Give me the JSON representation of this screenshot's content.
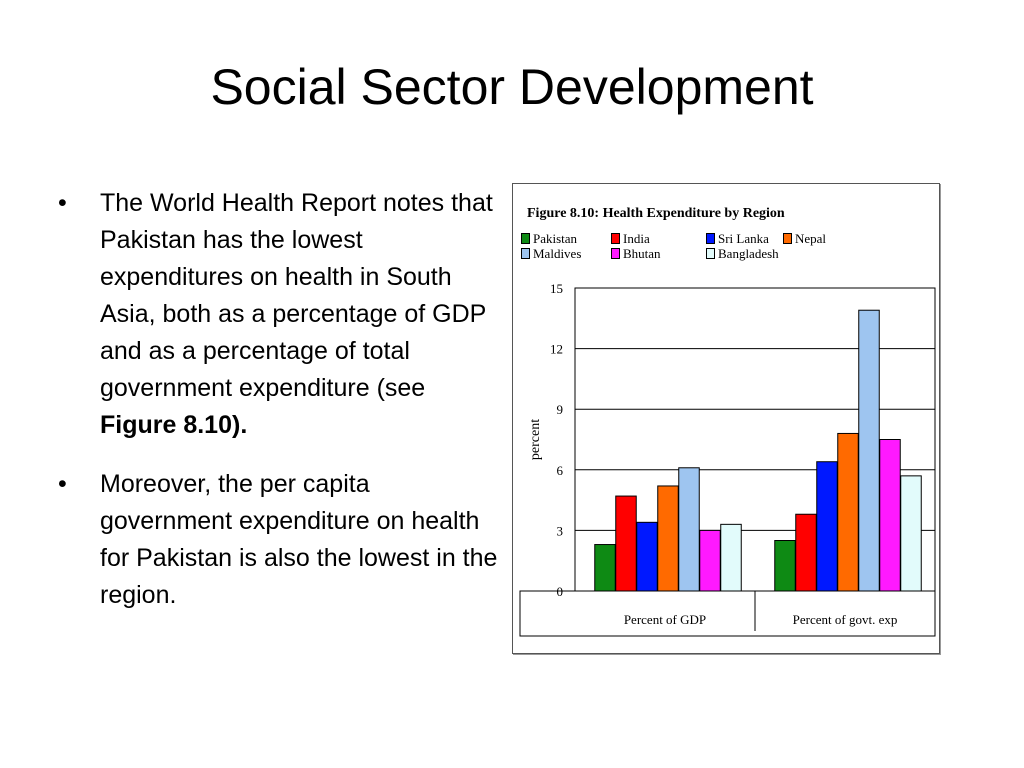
{
  "slide": {
    "title": "Social Sector Development",
    "bullets": [
      {
        "text": "The World Health Report notes that Pakistan has the lowest expenditures on health in South Asia, both as a percentage of GDP and as a percentage of total government expenditure (see ",
        "bold": "Figure 8.10)."
      },
      {
        "text": "Moreover, the per capita government expenditure on health for Pakistan is also the lowest in the region."
      }
    ]
  },
  "chart_data": {
    "type": "bar",
    "title": "Figure 8.10: Health Expenditure by Region",
    "ylabel": "percent",
    "xlabel": "",
    "ylim": [
      0,
      15
    ],
    "yticks": [
      0,
      3,
      6,
      9,
      12,
      15
    ],
    "grid": true,
    "legend_position": "top",
    "categories": [
      "Percent of GDP",
      "Percent of govt. exp"
    ],
    "series": [
      {
        "name": "Pakistan",
        "color": "#0e8a14",
        "values": [
          2.3,
          2.5
        ]
      },
      {
        "name": "India",
        "color": "#ff0000",
        "values": [
          4.7,
          3.8
        ]
      },
      {
        "name": "Sri Lanka",
        "color": "#0018ff",
        "values": [
          3.4,
          6.4
        ]
      },
      {
        "name": "Nepal",
        "color": "#ff6a00",
        "values": [
          5.2,
          7.8
        ]
      },
      {
        "name": "Maldives",
        "color": "#9ec5f0",
        "values": [
          6.1,
          13.9
        ]
      },
      {
        "name": "Bhutan",
        "color": "#ff19ff",
        "values": [
          3.0,
          7.5
        ]
      },
      {
        "name": "Bangladesh",
        "color": "#e2fbfb",
        "values": [
          3.3,
          5.7
        ]
      }
    ]
  }
}
